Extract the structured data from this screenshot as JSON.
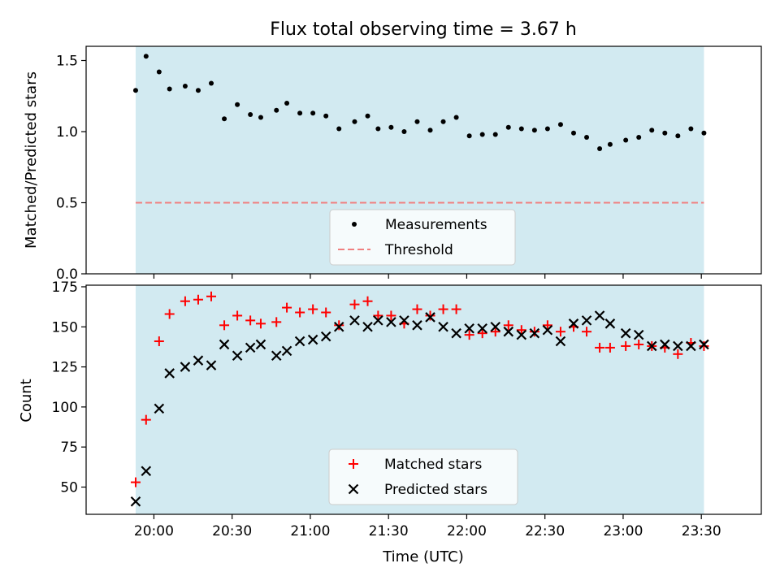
{
  "figure": {
    "title": "Flux total observing time = 3.67 h",
    "xlabel": "Time (UTC)"
  },
  "chart_data": [
    {
      "type": "scatter",
      "ylabel": "Matched/Predicted stars",
      "ylim": [
        0,
        1.6
      ],
      "yticks": [
        0.0,
        0.5,
        1.0,
        1.5
      ],
      "ytick_labels": [
        "0.0",
        "0.5",
        "1.0",
        "1.5"
      ],
      "xlim": [
        "19:34",
        "23:53"
      ],
      "shaded_span": [
        "19:53",
        "23:31"
      ],
      "shade_color": "#add8e6",
      "threshold": 0.5,
      "legend_position": "lower-center",
      "legend": [
        "Measurements",
        "Threshold"
      ],
      "series": [
        {
          "name": "Measurements",
          "marker": "dot",
          "color": "#000000",
          "x": [
            "19:53",
            "19:57",
            "20:02",
            "20:06",
            "20:12",
            "20:17",
            "20:22",
            "20:27",
            "20:32",
            "20:37",
            "20:41",
            "20:47",
            "20:51",
            "20:56",
            "21:01",
            "21:06",
            "21:11",
            "21:17",
            "21:22",
            "21:26",
            "21:31",
            "21:36",
            "21:41",
            "21:46",
            "21:51",
            "21:56",
            "22:01",
            "22:06",
            "22:11",
            "22:16",
            "22:21",
            "22:26",
            "22:31",
            "22:36",
            "22:41",
            "22:46",
            "22:51",
            "22:55",
            "23:01",
            "23:06",
            "23:11",
            "23:16",
            "23:21",
            "23:26",
            "23:31"
          ],
          "y": [
            1.29,
            1.53,
            1.42,
            1.3,
            1.32,
            1.29,
            1.34,
            1.09,
            1.19,
            1.12,
            1.1,
            1.15,
            1.2,
            1.13,
            1.13,
            1.11,
            1.02,
            1.07,
            1.11,
            1.02,
            1.03,
            1.0,
            1.07,
            1.01,
            1.07,
            1.1,
            0.97,
            0.98,
            0.98,
            1.03,
            1.02,
            1.01,
            1.02,
            1.05,
            0.99,
            0.96,
            0.88,
            0.91,
            0.94,
            0.96,
            1.01,
            0.99,
            0.97,
            1.02,
            0.99
          ]
        },
        {
          "name": "Threshold",
          "style": "dashed",
          "color": "#f08080",
          "x": [
            "19:53",
            "23:31"
          ],
          "y": [
            0.5,
            0.5
          ]
        }
      ]
    },
    {
      "type": "scatter",
      "ylabel": "Count",
      "ylim": [
        33,
        176
      ],
      "yticks": [
        50,
        75,
        100,
        125,
        150,
        175
      ],
      "ytick_labels": [
        "50",
        "75",
        "100",
        "125",
        "150",
        "175"
      ],
      "xlim": [
        "19:34",
        "23:53"
      ],
      "xticks": [
        "20:00",
        "20:30",
        "21:00",
        "21:30",
        "22:00",
        "22:30",
        "23:00",
        "23:30"
      ],
      "shaded_span": [
        "19:53",
        "23:31"
      ],
      "shade_color": "#add8e6",
      "legend_position": "lower-center",
      "legend": [
        "Matched stars",
        "Predicted stars"
      ],
      "series": [
        {
          "name": "Matched stars",
          "marker": "plus",
          "color": "#ff0000",
          "x": [
            "19:53",
            "19:57",
            "20:02",
            "20:06",
            "20:12",
            "20:17",
            "20:22",
            "20:27",
            "20:32",
            "20:37",
            "20:41",
            "20:47",
            "20:51",
            "20:56",
            "21:01",
            "21:06",
            "21:11",
            "21:17",
            "21:22",
            "21:26",
            "21:31",
            "21:36",
            "21:41",
            "21:46",
            "21:51",
            "21:56",
            "22:01",
            "22:06",
            "22:11",
            "22:16",
            "22:21",
            "22:26",
            "22:31",
            "22:36",
            "22:41",
            "22:46",
            "22:51",
            "22:55",
            "23:01",
            "23:06",
            "23:11",
            "23:16",
            "23:21",
            "23:26",
            "23:31"
          ],
          "y": [
            53,
            92,
            141,
            158,
            166,
            167,
            169,
            151,
            157,
            154,
            152,
            153,
            162,
            159,
            161,
            159,
            151,
            164,
            166,
            157,
            157,
            152,
            161,
            157,
            161,
            161,
            145,
            146,
            147,
            151,
            148,
            147,
            151,
            147,
            150,
            147,
            137,
            137,
            138,
            139,
            138,
            137,
            133,
            140,
            138
          ]
        },
        {
          "name": "Predicted stars",
          "marker": "x",
          "color": "#000000",
          "x": [
            "19:53",
            "19:57",
            "20:02",
            "20:06",
            "20:12",
            "20:17",
            "20:22",
            "20:27",
            "20:32",
            "20:37",
            "20:41",
            "20:47",
            "20:51",
            "20:56",
            "21:01",
            "21:06",
            "21:11",
            "21:17",
            "21:22",
            "21:26",
            "21:31",
            "21:36",
            "21:41",
            "21:46",
            "21:51",
            "21:56",
            "22:01",
            "22:06",
            "22:11",
            "22:16",
            "22:21",
            "22:26",
            "22:31",
            "22:36",
            "22:41",
            "22:46",
            "22:51",
            "22:55",
            "23:01",
            "23:06",
            "23:11",
            "23:16",
            "23:21",
            "23:26",
            "23:31"
          ],
          "y": [
            41,
            60,
            99,
            121,
            125,
            129,
            126,
            139,
            132,
            137,
            139,
            132,
            135,
            141,
            142,
            144,
            150,
            154,
            150,
            154,
            153,
            154,
            151,
            156,
            150,
            146,
            149,
            149,
            150,
            147,
            145,
            146,
            148,
            141,
            152,
            154,
            157,
            152,
            146,
            145,
            138,
            139,
            138,
            138,
            139
          ]
        }
      ]
    }
  ]
}
